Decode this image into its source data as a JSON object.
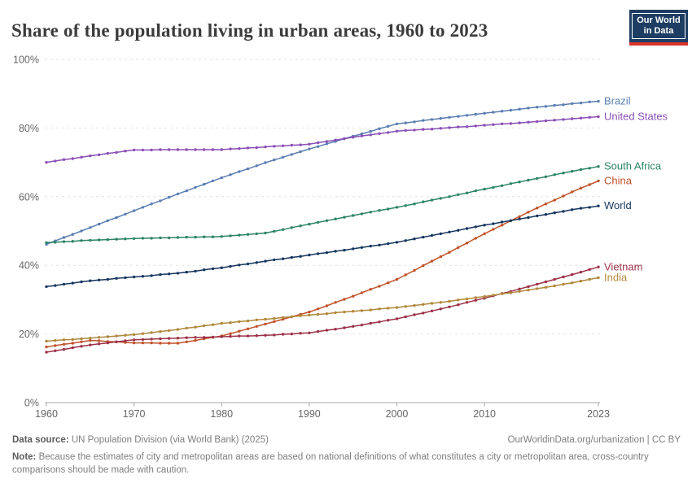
{
  "header": {
    "title": "Share of the population living in urban areas, 1960 to 2023",
    "logo": {
      "line1": "Our World",
      "line2": "in Data",
      "bg_color": "#1d3d63",
      "bar_color": "#d7352b"
    }
  },
  "chart_data": {
    "type": "line",
    "title": "Share of the population living in urban areas, 1960 to 2023",
    "xlabel": "",
    "ylabel": "",
    "ylim": [
      0,
      100
    ],
    "yticks": [
      0,
      20,
      40,
      60,
      80,
      100
    ],
    "ytick_suffix": "%",
    "xticks": [
      1960,
      1970,
      1980,
      1990,
      2000,
      2010,
      2023
    ],
    "grid": "horizontal-dashed",
    "legend_position": "right-end-of-line-labels",
    "markers": "point-per-year",
    "colors": {
      "grid": "#e2e2e2",
      "axis": "#a8a8a8",
      "tick_label": "#666666"
    },
    "years": [
      1960,
      1961,
      1962,
      1963,
      1964,
      1965,
      1966,
      1967,
      1968,
      1969,
      1970,
      1971,
      1972,
      1973,
      1974,
      1975,
      1976,
      1977,
      1978,
      1979,
      1980,
      1981,
      1982,
      1983,
      1984,
      1985,
      1986,
      1987,
      1988,
      1989,
      1990,
      1991,
      1992,
      1993,
      1994,
      1995,
      1996,
      1997,
      1998,
      1999,
      2000,
      2001,
      2002,
      2003,
      2004,
      2005,
      2006,
      2007,
      2008,
      2009,
      2010,
      2011,
      2012,
      2013,
      2014,
      2015,
      2016,
      2017,
      2018,
      2019,
      2020,
      2021,
      2022,
      2023
    ],
    "series": [
      {
        "name": "Brazil",
        "color": "#5b7eb2",
        "values": [
          46.1,
          47.1,
          48.1,
          49.0,
          50.0,
          51.0,
          52.0,
          53.0,
          53.9,
          54.9,
          55.9,
          56.9,
          57.9,
          58.8,
          59.8,
          60.8,
          61.7,
          62.7,
          63.6,
          64.6,
          65.5,
          66.4,
          67.3,
          68.1,
          69.0,
          69.9,
          70.7,
          71.5,
          72.3,
          73.1,
          73.9,
          74.6,
          75.4,
          76.1,
          76.9,
          77.6,
          78.3,
          79.0,
          79.8,
          80.5,
          81.2,
          81.5,
          81.8,
          82.2,
          82.5,
          82.8,
          83.1,
          83.4,
          83.7,
          84.0,
          84.3,
          84.6,
          84.9,
          85.2,
          85.5,
          85.8,
          86.1,
          86.3,
          86.6,
          86.8,
          87.1,
          87.3,
          87.6,
          87.8
        ]
      },
      {
        "name": "United States",
        "color": "#8a4fb6",
        "values": [
          70.0,
          70.4,
          70.8,
          71.1,
          71.5,
          71.9,
          72.2,
          72.6,
          72.9,
          73.3,
          73.6,
          73.6,
          73.6,
          73.7,
          73.7,
          73.7,
          73.7,
          73.7,
          73.7,
          73.7,
          73.7,
          73.9,
          74.0,
          74.2,
          74.3,
          74.5,
          74.7,
          74.8,
          75.0,
          75.1,
          75.3,
          75.7,
          76.1,
          76.5,
          76.9,
          77.3,
          77.7,
          78.0,
          78.4,
          78.7,
          79.1,
          79.3,
          79.4,
          79.6,
          79.7,
          79.9,
          80.1,
          80.3,
          80.4,
          80.6,
          80.8,
          81.0,
          81.2,
          81.3,
          81.5,
          81.7,
          81.9,
          82.1,
          82.3,
          82.5,
          82.7,
          82.9,
          83.1,
          83.3
        ]
      },
      {
        "name": "South Africa",
        "color": "#2c8465",
        "values": [
          46.6,
          46.7,
          46.9,
          47.0,
          47.2,
          47.3,
          47.4,
          47.5,
          47.6,
          47.7,
          47.8,
          47.9,
          47.9,
          48.0,
          48.0,
          48.1,
          48.2,
          48.2,
          48.3,
          48.3,
          48.4,
          48.6,
          48.8,
          49.0,
          49.2,
          49.4,
          49.9,
          50.4,
          51.0,
          51.5,
          52.0,
          52.5,
          53.0,
          53.5,
          54.0,
          54.5,
          55.0,
          55.5,
          56.0,
          56.4,
          56.9,
          57.4,
          57.9,
          58.5,
          59.0,
          59.5,
          60.0,
          60.6,
          61.1,
          61.7,
          62.2,
          62.7,
          63.2,
          63.8,
          64.3,
          64.8,
          65.3,
          65.8,
          66.4,
          66.9,
          67.4,
          67.9,
          68.3,
          68.8
        ]
      },
      {
        "name": "China",
        "color": "#c1522a",
        "values": [
          16.2,
          16.6,
          17.0,
          17.3,
          17.7,
          18.1,
          18.0,
          17.8,
          17.7,
          17.5,
          17.4,
          17.4,
          17.4,
          17.3,
          17.3,
          17.3,
          17.7,
          18.1,
          18.6,
          19.0,
          19.4,
          20.1,
          20.8,
          21.5,
          22.2,
          22.9,
          23.6,
          24.3,
          25.0,
          25.7,
          26.4,
          27.3,
          28.2,
          29.2,
          30.1,
          31.0,
          32.0,
          33.0,
          33.9,
          34.9,
          35.9,
          37.2,
          38.5,
          39.9,
          41.2,
          42.5,
          43.8,
          45.2,
          46.5,
          47.9,
          49.2,
          50.5,
          51.7,
          53.0,
          54.2,
          55.5,
          56.7,
          57.9,
          59.0,
          60.2,
          61.4,
          62.5,
          63.5,
          64.6
        ]
      },
      {
        "name": "World",
        "color": "#16365f",
        "values": [
          33.8,
          34.1,
          34.5,
          34.8,
          35.2,
          35.5,
          35.7,
          35.9,
          36.2,
          36.4,
          36.6,
          36.8,
          37.0,
          37.3,
          37.5,
          37.7,
          38.0,
          38.3,
          38.7,
          39.0,
          39.3,
          39.7,
          40.1,
          40.4,
          40.8,
          41.2,
          41.6,
          41.9,
          42.3,
          42.6,
          43.0,
          43.4,
          43.7,
          44.1,
          44.4,
          44.8,
          45.2,
          45.6,
          45.9,
          46.3,
          46.7,
          47.2,
          47.7,
          48.2,
          48.7,
          49.2,
          49.7,
          50.2,
          50.7,
          51.2,
          51.7,
          52.1,
          52.6,
          53.0,
          53.5,
          53.9,
          54.4,
          54.8,
          55.3,
          55.7,
          56.2,
          56.6,
          56.9,
          57.3
        ]
      },
      {
        "name": "Vietnam",
        "color": "#9c3149",
        "values": [
          14.7,
          15.1,
          15.5,
          16.0,
          16.4,
          16.8,
          17.1,
          17.4,
          17.7,
          18.0,
          18.3,
          18.4,
          18.5,
          18.6,
          18.7,
          18.8,
          18.9,
          19.0,
          19.0,
          19.1,
          19.2,
          19.3,
          19.4,
          19.4,
          19.5,
          19.6,
          19.7,
          19.9,
          20.0,
          20.2,
          20.3,
          20.7,
          21.1,
          21.4,
          21.8,
          22.2,
          22.6,
          23.1,
          23.5,
          24.0,
          24.4,
          25.0,
          25.6,
          26.1,
          26.7,
          27.3,
          27.9,
          28.5,
          29.2,
          29.8,
          30.4,
          31.1,
          31.8,
          32.4,
          33.1,
          33.8,
          34.5,
          35.2,
          35.9,
          36.6,
          37.3,
          38.0,
          38.8,
          39.5
        ]
      },
      {
        "name": "India",
        "color": "#b0883b",
        "values": [
          17.9,
          18.1,
          18.3,
          18.4,
          18.6,
          18.8,
          19.0,
          19.2,
          19.4,
          19.6,
          19.8,
          20.1,
          20.4,
          20.7,
          21.0,
          21.3,
          21.7,
          22.0,
          22.4,
          22.7,
          23.1,
          23.3,
          23.6,
          23.8,
          24.1,
          24.3,
          24.5,
          24.8,
          25.0,
          25.3,
          25.5,
          25.7,
          25.9,
          26.2,
          26.4,
          26.6,
          26.8,
          27.0,
          27.3,
          27.5,
          27.7,
          28.0,
          28.3,
          28.6,
          28.9,
          29.2,
          29.5,
          29.9,
          30.2,
          30.6,
          30.9,
          31.3,
          31.7,
          32.0,
          32.4,
          32.8,
          33.2,
          33.6,
          34.0,
          34.5,
          34.9,
          35.4,
          35.9,
          36.4
        ]
      }
    ]
  },
  "footer": {
    "source_label": "Data source:",
    "source_text": " UN Population Division (via World Bank) (2025)",
    "credit": "OurWorldinData.org/urbanization | CC BY",
    "note_label": "Note:",
    "note_text": " Because the estimates of city and metropolitan areas are based on national definitions of what constitutes a city or metropolitan area, cross-country comparisons should be made with caution."
  }
}
